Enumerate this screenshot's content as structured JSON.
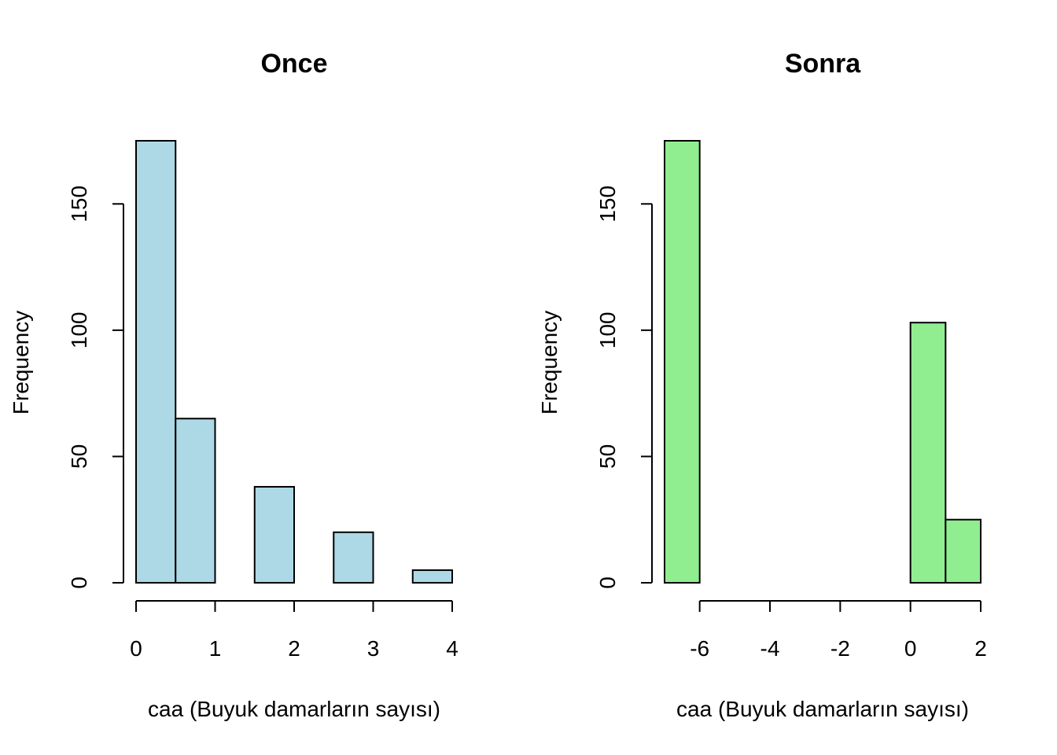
{
  "chart_data": [
    {
      "type": "bar",
      "title": "Once",
      "xlabel": "caa (Buyuk damarların sayısı)",
      "ylabel": "Frequency",
      "color": "#add8e6",
      "xlim": [
        0,
        4
      ],
      "ylim": [
        0,
        175
      ],
      "xticks": [
        "0",
        "1",
        "2",
        "3",
        "4"
      ],
      "yticks": [
        "0",
        "50",
        "100",
        "150"
      ],
      "bins": [
        {
          "from": 0.0,
          "to": 0.5,
          "value": 175
        },
        {
          "from": 0.5,
          "to": 1.0,
          "value": 65
        },
        {
          "from": 1.0,
          "to": 1.5,
          "value": 0
        },
        {
          "from": 1.5,
          "to": 2.0,
          "value": 38
        },
        {
          "from": 2.0,
          "to": 2.5,
          "value": 0
        },
        {
          "from": 2.5,
          "to": 3.0,
          "value": 20
        },
        {
          "from": 3.0,
          "to": 3.5,
          "value": 0
        },
        {
          "from": 3.5,
          "to": 4.0,
          "value": 5
        }
      ]
    },
    {
      "type": "bar",
      "title": "Sonra",
      "xlabel": "caa (Buyuk damarların sayısı)",
      "ylabel": "Frequency",
      "color": "#90ee90",
      "xlim": [
        -7,
        2
      ],
      "ylim": [
        0,
        175
      ],
      "xticks": [
        "-6",
        "-4",
        "-2",
        "0",
        "2"
      ],
      "yticks": [
        "0",
        "50",
        "100",
        "150"
      ],
      "bins": [
        {
          "from": -7,
          "to": -6,
          "value": 175
        },
        {
          "from": -6,
          "to": -5,
          "value": 0
        },
        {
          "from": -5,
          "to": -4,
          "value": 0
        },
        {
          "from": -4,
          "to": -3,
          "value": 0
        },
        {
          "from": -3,
          "to": -2,
          "value": 0
        },
        {
          "from": -2,
          "to": -1,
          "value": 0
        },
        {
          "from": -1,
          "to": 0,
          "value": 0
        },
        {
          "from": 0,
          "to": 1,
          "value": 103
        },
        {
          "from": 1,
          "to": 2,
          "value": 25
        }
      ]
    }
  ]
}
